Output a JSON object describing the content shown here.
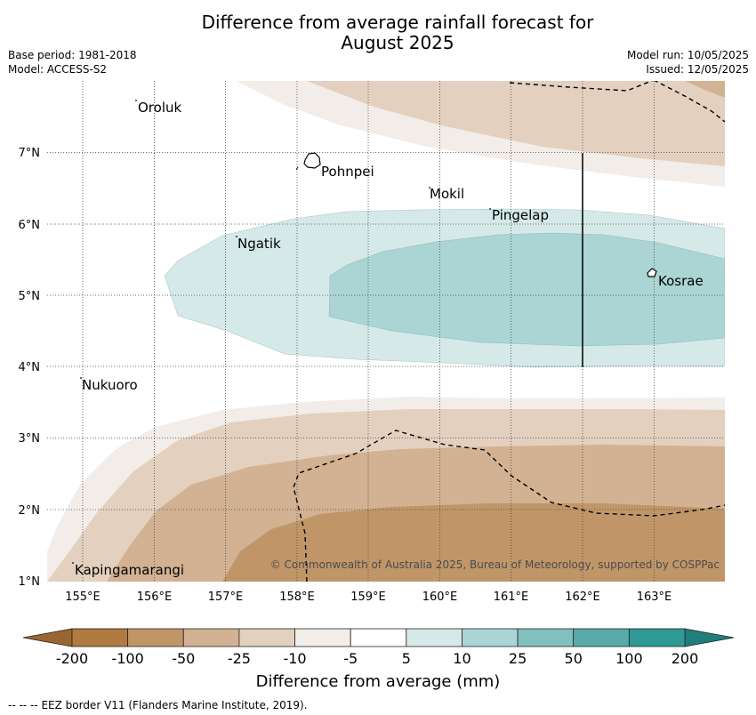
{
  "title": {
    "line1": "Difference from average rainfall forecast for",
    "line2": "August 2025"
  },
  "meta_left": {
    "base_period": "Base period: 1981-2018",
    "model": "Model: ACCESS-S2"
  },
  "meta_right": {
    "model_run": "Model run: 10/05/2025",
    "issued": "Issued: 12/05/2025"
  },
  "map": {
    "lon_range": [
      154.5,
      164.0
    ],
    "lat_range": [
      1.0,
      8.0
    ],
    "lon_ticks": [
      "155°E",
      "156°E",
      "157°E",
      "158°E",
      "159°E",
      "160°E",
      "161°E",
      "162°E",
      "163°E"
    ],
    "lat_ticks": [
      "1°N",
      "2°N",
      "3°N",
      "4°N",
      "5°N",
      "6°N",
      "7°N"
    ],
    "gridlines": true,
    "places": [
      {
        "name": "Oroluk",
        "lon": 155.55,
        "lat": 7.65
      },
      {
        "name": "Pohnpei",
        "lon": 158.2,
        "lat": 6.87
      },
      {
        "name": "Mokil",
        "lon": 159.85,
        "lat": 6.45
      },
      {
        "name": "Pingelap",
        "lon": 160.7,
        "lat": 6.2
      },
      {
        "name": "Ngatik",
        "lon": 157.15,
        "lat": 5.8
      },
      {
        "name": "Kosrae",
        "lon": 162.98,
        "lat": 5.3
      },
      {
        "name": "Nukuoro",
        "lon": 154.8,
        "lat": 3.85
      },
      {
        "name": "Kapingamarangi",
        "lon": 154.85,
        "lat": 1.25
      }
    ],
    "eez_border_label": "EEZ border V11 (Flanders Marine Institute, 2019)."
  },
  "credit": "© Commonwealth of Australia 2025, Bureau of Meteorology, supported by COSPPac",
  "colorbar": {
    "labels": [
      "-200",
      "-100",
      "-50",
      "-25",
      "-10",
      "-5",
      "5",
      "10",
      "25",
      "50",
      "100",
      "200"
    ],
    "colors": [
      "#b07a40",
      "#c09669",
      "#d2b292",
      "#e3d0be",
      "#f2ede8",
      "#ffffff",
      "#d5e9e9",
      "#abd4d4",
      "#80c0bd",
      "#57aca9",
      "#2f9a95"
    ],
    "extend_low_color": "#9a6630",
    "extend_high_color": "#1e7f7c",
    "title": "Difference from average (mm)"
  },
  "footer": {
    "legend_symbol": "--  --  --",
    "text": "EEZ border V11 (Flanders Marine Institute, 2019)."
  }
}
